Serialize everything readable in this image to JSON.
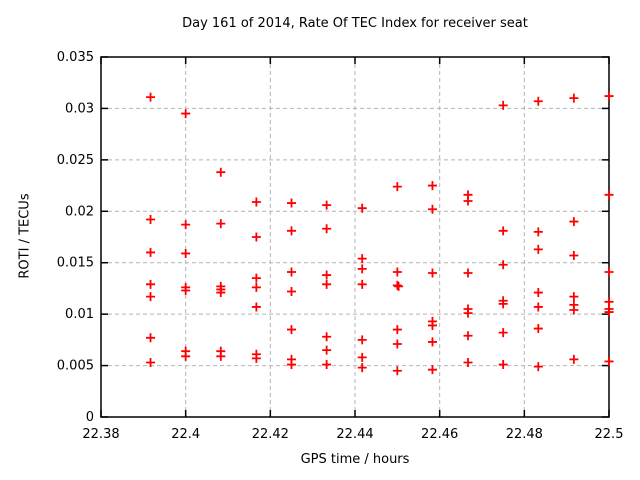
{
  "page": {
    "background": "#ffffff"
  },
  "chart_data": {
    "type": "scatter",
    "title": "Day 161 of 2014, Rate Of TEC Index for receiver seat",
    "xlabel": "GPS time / hours",
    "ylabel": "ROTI / TECUs",
    "xlim": [
      22.38,
      22.5
    ],
    "ylim": [
      0,
      0.035
    ],
    "xticks": [
      {
        "v": 22.38,
        "label": "22.38"
      },
      {
        "v": 22.4,
        "label": "22.4"
      },
      {
        "v": 22.42,
        "label": "22.42"
      },
      {
        "v": 22.44,
        "label": "22.44"
      },
      {
        "v": 22.46,
        "label": "22.46"
      },
      {
        "v": 22.48,
        "label": "22.48"
      },
      {
        "v": 22.5,
        "label": "22.5"
      }
    ],
    "yticks": [
      {
        "v": 0,
        "label": "0"
      },
      {
        "v": 0.005,
        "label": "0.005"
      },
      {
        "v": 0.01,
        "label": "0.01"
      },
      {
        "v": 0.015,
        "label": "0.015"
      },
      {
        "v": 0.02,
        "label": "0.02"
      },
      {
        "v": 0.025,
        "label": "0.025"
      },
      {
        "v": 0.03,
        "label": "0.03"
      },
      {
        "v": 0.035,
        "label": "0.035"
      }
    ],
    "grid": true,
    "legend_position": "none",
    "styles": {
      "marker": "plus",
      "marker_color": "#ff0000",
      "marker_size": 9,
      "grid_color": "#b4b4b4",
      "axis_color": "#000000",
      "text_color": "#000000",
      "background": "#ffffff"
    },
    "series": [
      {
        "name": "ROTI",
        "points": [
          [
            22.3917,
            0.0311
          ],
          [
            22.3917,
            0.0192
          ],
          [
            22.3917,
            0.016
          ],
          [
            22.3917,
            0.0129
          ],
          [
            22.3917,
            0.0117
          ],
          [
            22.3917,
            0.0077
          ],
          [
            22.3917,
            0.0053
          ],
          [
            22.4,
            0.0295
          ],
          [
            22.4,
            0.0187
          ],
          [
            22.4,
            0.0159
          ],
          [
            22.4,
            0.0126
          ],
          [
            22.4,
            0.0123
          ],
          [
            22.4,
            0.0064
          ],
          [
            22.4,
            0.0059
          ],
          [
            22.4083,
            0.0238
          ],
          [
            22.4083,
            0.0188
          ],
          [
            22.4083,
            0.0127
          ],
          [
            22.4083,
            0.0124
          ],
          [
            22.4083,
            0.0121
          ],
          [
            22.4083,
            0.0064
          ],
          [
            22.4083,
            0.0059
          ],
          [
            22.4167,
            0.0209
          ],
          [
            22.4167,
            0.0175
          ],
          [
            22.4167,
            0.0135
          ],
          [
            22.4167,
            0.0126
          ],
          [
            22.4167,
            0.0107
          ],
          [
            22.4167,
            0.0061
          ],
          [
            22.4167,
            0.0057
          ],
          [
            22.425,
            0.0208
          ],
          [
            22.425,
            0.0181
          ],
          [
            22.425,
            0.0141
          ],
          [
            22.425,
            0.0122
          ],
          [
            22.425,
            0.0085
          ],
          [
            22.425,
            0.0056
          ],
          [
            22.425,
            0.0051
          ],
          [
            22.4333,
            0.0206
          ],
          [
            22.4333,
            0.0183
          ],
          [
            22.4333,
            0.0138
          ],
          [
            22.4333,
            0.0129
          ],
          [
            22.4333,
            0.0078
          ],
          [
            22.4333,
            0.0065
          ],
          [
            22.4333,
            0.0051
          ],
          [
            22.4417,
            0.0203
          ],
          [
            22.4417,
            0.0154
          ],
          [
            22.4417,
            0.0144
          ],
          [
            22.4417,
            0.0129
          ],
          [
            22.4417,
            0.0075
          ],
          [
            22.4417,
            0.0058
          ],
          [
            22.4417,
            0.0048
          ],
          [
            22.45,
            0.0224
          ],
          [
            22.45,
            0.0141
          ],
          [
            22.45,
            0.0128
          ],
          [
            22.4503,
            0.0127
          ],
          [
            22.45,
            0.0085
          ],
          [
            22.45,
            0.0071
          ],
          [
            22.45,
            0.0045
          ],
          [
            22.4583,
            0.0225
          ],
          [
            22.4583,
            0.0202
          ],
          [
            22.4583,
            0.014
          ],
          [
            22.4583,
            0.0093
          ],
          [
            22.4583,
            0.0089
          ],
          [
            22.4583,
            0.0073
          ],
          [
            22.4583,
            0.0046
          ],
          [
            22.4667,
            0.0216
          ],
          [
            22.4667,
            0.021
          ],
          [
            22.4667,
            0.014
          ],
          [
            22.4667,
            0.0105
          ],
          [
            22.4667,
            0.0101
          ],
          [
            22.4667,
            0.0079
          ],
          [
            22.4667,
            0.0053
          ],
          [
            22.475,
            0.0303
          ],
          [
            22.475,
            0.0181
          ],
          [
            22.475,
            0.0148
          ],
          [
            22.475,
            0.0113
          ],
          [
            22.475,
            0.011
          ],
          [
            22.475,
            0.0082
          ],
          [
            22.475,
            0.0051
          ],
          [
            22.4833,
            0.0307
          ],
          [
            22.4833,
            0.018
          ],
          [
            22.4833,
            0.0163
          ],
          [
            22.4833,
            0.0121
          ],
          [
            22.4833,
            0.0107
          ],
          [
            22.4833,
            0.0086
          ],
          [
            22.4833,
            0.0049
          ],
          [
            22.4917,
            0.031
          ],
          [
            22.4917,
            0.019
          ],
          [
            22.4917,
            0.0157
          ],
          [
            22.4917,
            0.0117
          ],
          [
            22.4917,
            0.0109
          ],
          [
            22.4917,
            0.0104
          ],
          [
            22.4917,
            0.0056
          ],
          [
            22.5,
            0.0312
          ],
          [
            22.5,
            0.0216
          ],
          [
            22.5,
            0.0141
          ],
          [
            22.5,
            0.0112
          ],
          [
            22.5,
            0.0105
          ],
          [
            22.5,
            0.0102
          ],
          [
            22.5,
            0.0054
          ]
        ]
      }
    ]
  }
}
